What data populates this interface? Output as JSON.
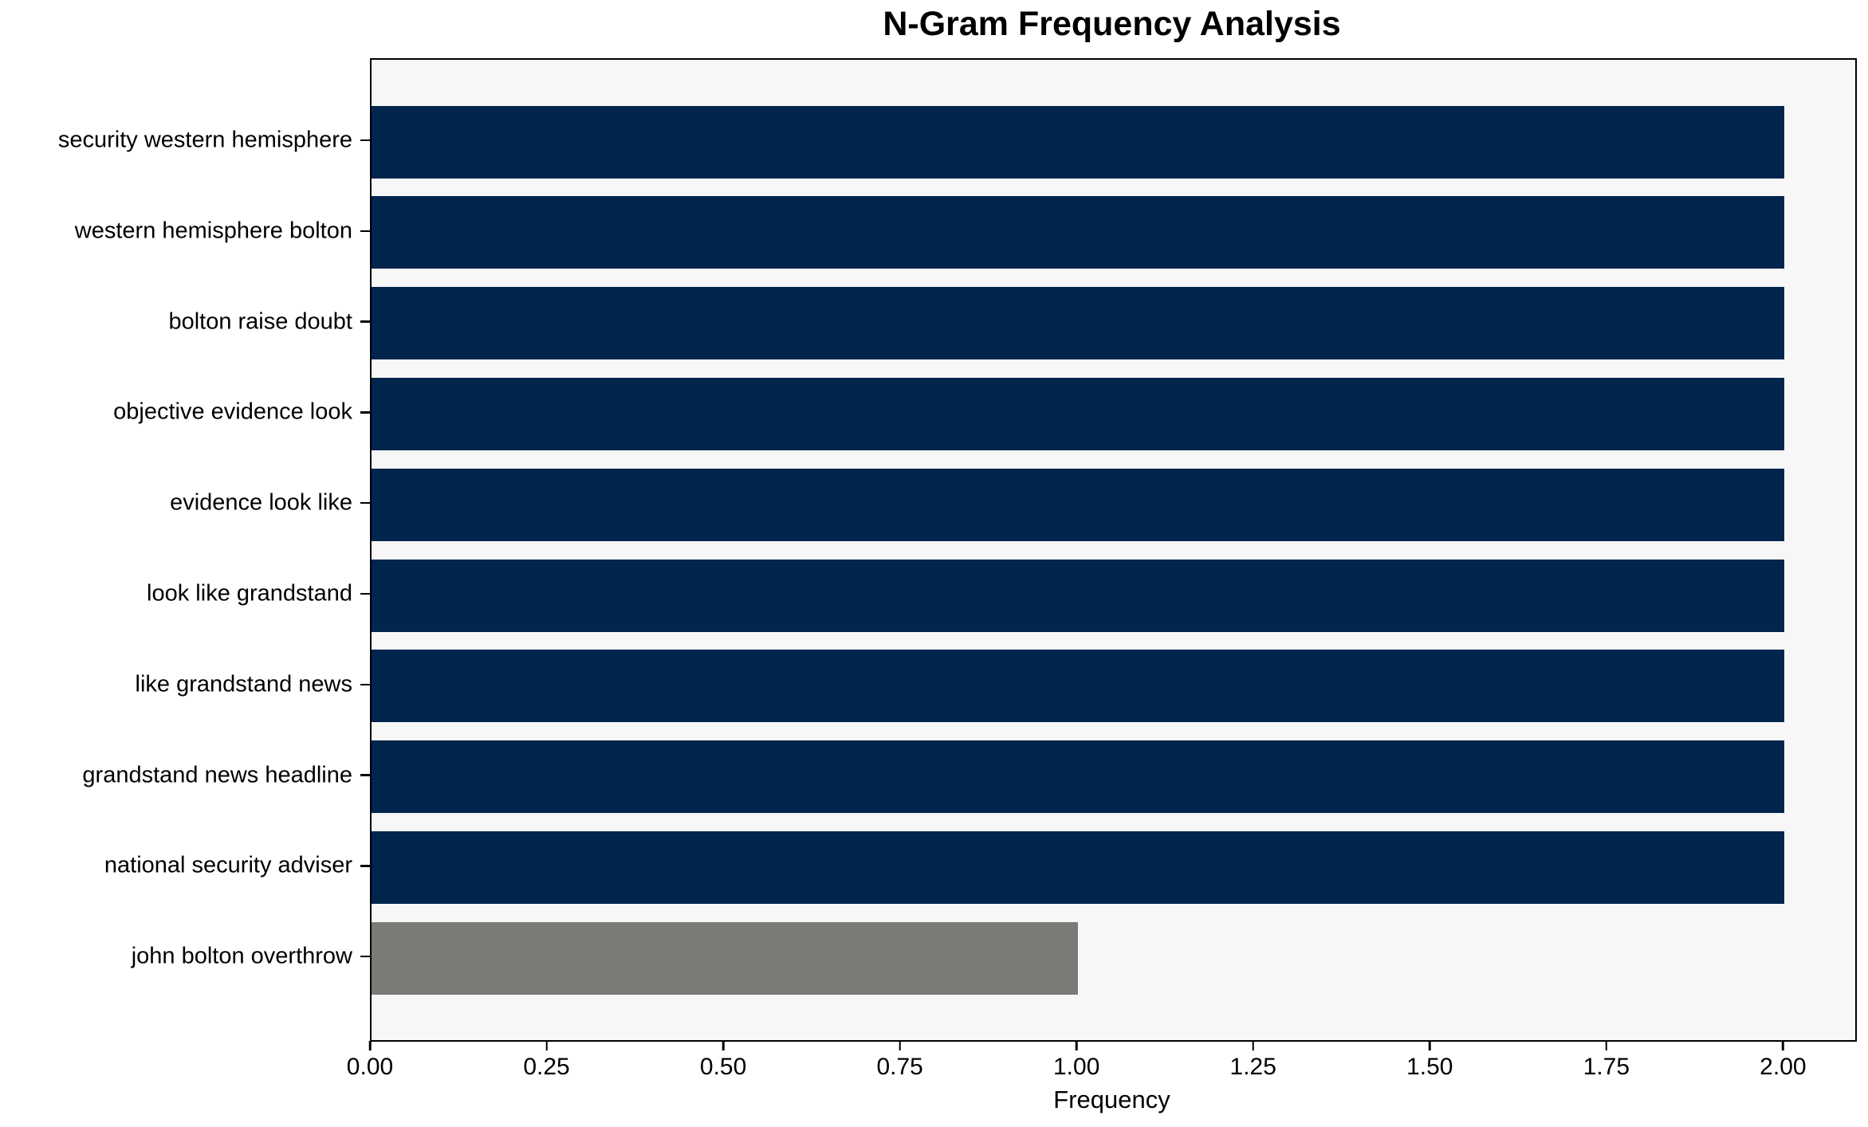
{
  "chart_data": {
    "type": "bar",
    "orientation": "horizontal",
    "title": "N-Gram Frequency Analysis",
    "xlabel": "Frequency",
    "ylabel": "",
    "categories": [
      "security western hemisphere",
      "western hemisphere bolton",
      "bolton raise doubt",
      "objective evidence look",
      "evidence look like",
      "look like grandstand",
      "like grandstand news",
      "grandstand news headline",
      "national security adviser",
      "john bolton overthrow"
    ],
    "values": [
      2,
      2,
      2,
      2,
      2,
      2,
      2,
      2,
      2,
      1
    ],
    "bar_colors": [
      "#02254d",
      "#02254d",
      "#02254d",
      "#02254d",
      "#02254d",
      "#02254d",
      "#02254d",
      "#02254d",
      "#02254d",
      "#7b7a77"
    ],
    "xlim": [
      0,
      2.1
    ],
    "xticks": [
      0,
      0.25,
      0.5,
      0.75,
      1.0,
      1.25,
      1.5,
      1.75,
      2.0
    ],
    "xtick_labels": [
      "0.00",
      "0.25",
      "0.50",
      "0.75",
      "1.00",
      "1.25",
      "1.50",
      "1.75",
      "2.00"
    ],
    "grid": false,
    "legend": "none",
    "plot_background": "#f7f7f7",
    "figure_background": "#ffffff",
    "spine_color": "#000000",
    "text_color": "#000000"
  }
}
